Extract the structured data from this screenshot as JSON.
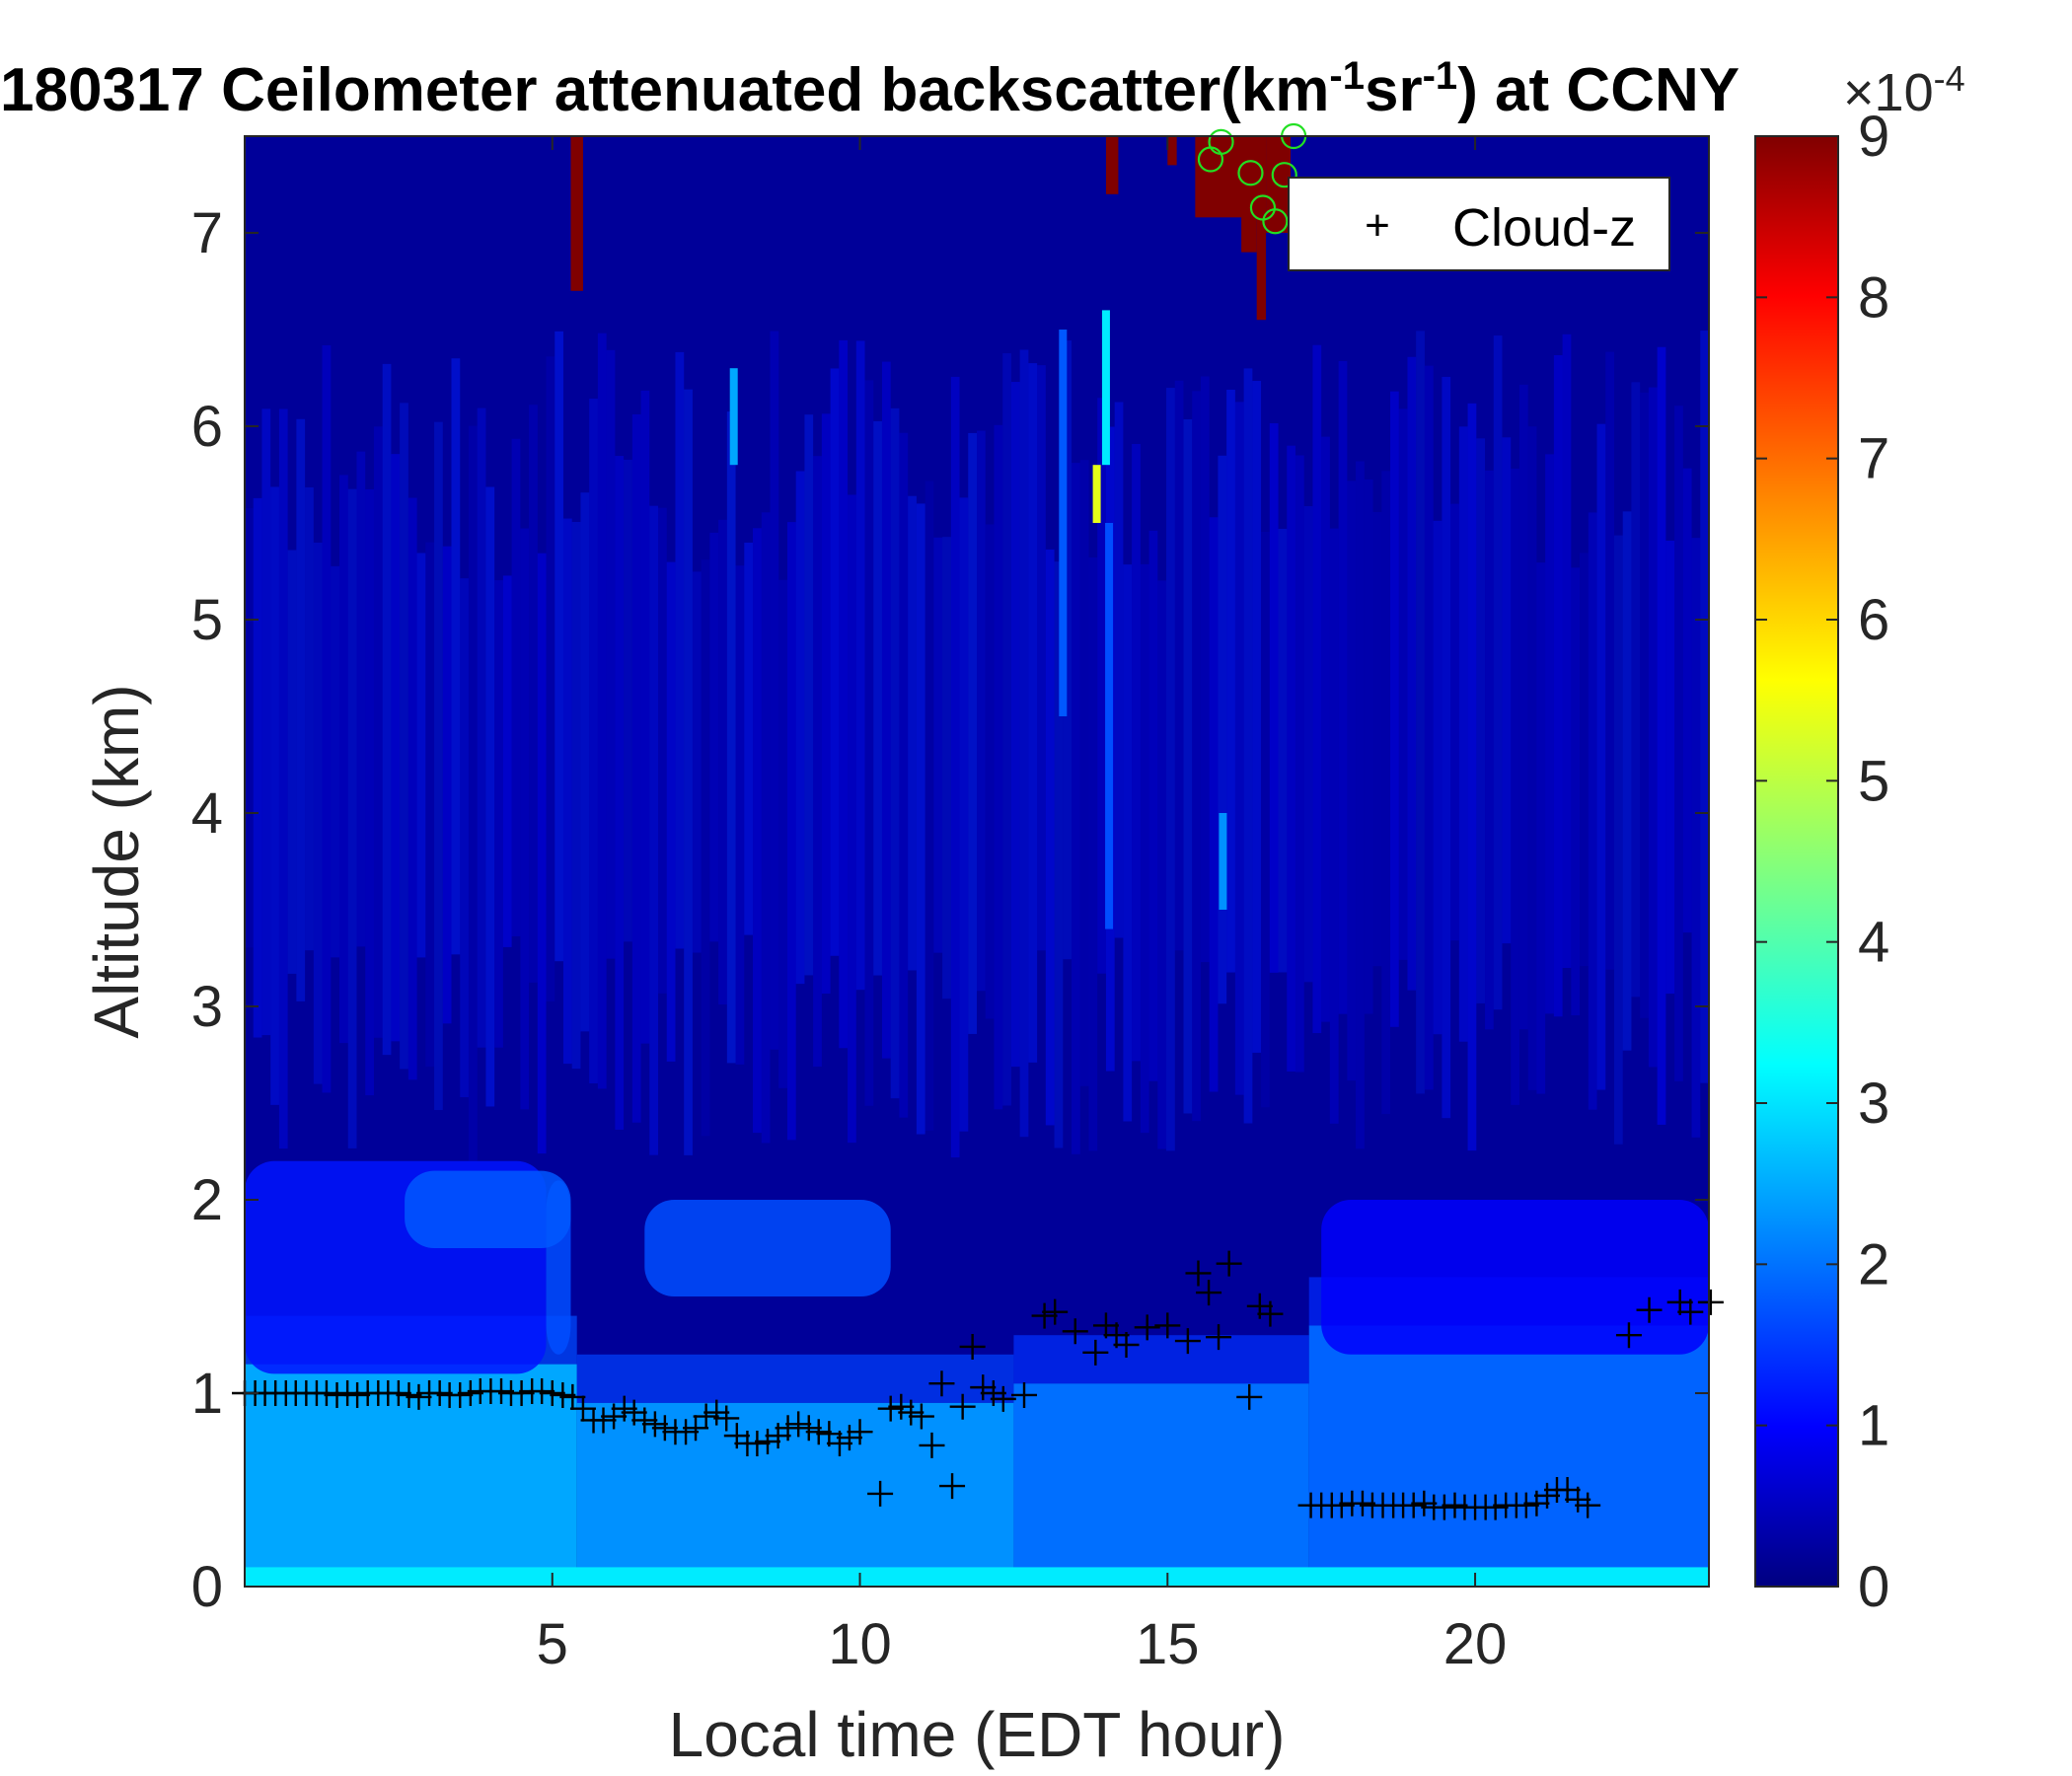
{
  "chart_data": {
    "type": "heatmap",
    "title": {
      "prefix": "180317 Ceilometer attenuated backscatter(km",
      "sup1": "-1",
      "mid": "sr",
      "sup2": "-1",
      "suffix": ") at CCNY"
    },
    "xlabel": "Local time (EDT hour)",
    "ylabel": "Altitude (km)",
    "xlim": [
      0,
      23.8
    ],
    "ylim": [
      0,
      7.5
    ],
    "xticks": [
      5,
      10,
      15,
      20
    ],
    "yticks": [
      0,
      1,
      2,
      3,
      4,
      5,
      6,
      7
    ],
    "colorbar": {
      "colormap": "jet",
      "min": 0,
      "max": 9,
      "ticks": [
        0,
        1,
        2,
        3,
        4,
        5,
        6,
        7,
        8,
        9
      ],
      "exponent_label": "×10",
      "exponent_power": "-4"
    },
    "legend": {
      "position": "top-right",
      "entries": [
        {
          "marker": "+",
          "label": "Cloud-z"
        }
      ]
    },
    "series": [
      {
        "name": "Cloud-z",
        "marker": "+",
        "color": "#000000",
        "points": [
          [
            0.0,
            1.0
          ],
          [
            0.17,
            1.0
          ],
          [
            0.33,
            1.0
          ],
          [
            0.5,
            1.0
          ],
          [
            0.67,
            1.0
          ],
          [
            0.83,
            1.0
          ],
          [
            1.0,
            1.0
          ],
          [
            1.17,
            1.0
          ],
          [
            1.33,
            1.0
          ],
          [
            1.5,
            0.99
          ],
          [
            1.67,
            1.0
          ],
          [
            1.83,
            0.99
          ],
          [
            2.0,
            1.0
          ],
          [
            2.17,
            1.0
          ],
          [
            2.33,
            1.0
          ],
          [
            2.5,
            1.0
          ],
          [
            2.67,
            0.99
          ],
          [
            2.83,
            0.98
          ],
          [
            3.0,
            1.0
          ],
          [
            3.17,
            1.0
          ],
          [
            3.33,
            0.99
          ],
          [
            3.5,
            0.99
          ],
          [
            3.67,
            1.0
          ],
          [
            3.83,
            1.01
          ],
          [
            4.0,
            1.01
          ],
          [
            4.17,
            1.01
          ],
          [
            4.33,
            1.0
          ],
          [
            4.5,
            1.0
          ],
          [
            4.67,
            1.01
          ],
          [
            4.83,
            1.01
          ],
          [
            5.0,
            1.0
          ],
          [
            5.17,
            0.99
          ],
          [
            5.33,
            0.98
          ],
          [
            5.5,
            0.92
          ],
          [
            5.67,
            0.86
          ],
          [
            5.83,
            0.86
          ],
          [
            6.0,
            0.88
          ],
          [
            6.17,
            0.92
          ],
          [
            6.33,
            0.9
          ],
          [
            6.5,
            0.86
          ],
          [
            6.67,
            0.84
          ],
          [
            6.83,
            0.82
          ],
          [
            7.0,
            0.8
          ],
          [
            7.17,
            0.8
          ],
          [
            7.33,
            0.82
          ],
          [
            7.5,
            0.88
          ],
          [
            7.67,
            0.9
          ],
          [
            7.83,
            0.87
          ],
          [
            8.0,
            0.78
          ],
          [
            8.17,
            0.74
          ],
          [
            8.33,
            0.74
          ],
          [
            8.5,
            0.75
          ],
          [
            8.67,
            0.78
          ],
          [
            8.83,
            0.82
          ],
          [
            9.0,
            0.84
          ],
          [
            9.17,
            0.82
          ],
          [
            9.33,
            0.8
          ],
          [
            9.5,
            0.79
          ],
          [
            9.67,
            0.74
          ],
          [
            9.83,
            0.77
          ],
          [
            10.0,
            0.8
          ],
          [
            10.33,
            0.48
          ],
          [
            10.5,
            0.92
          ],
          [
            10.67,
            0.93
          ],
          [
            10.83,
            0.9
          ],
          [
            11.0,
            0.88
          ],
          [
            11.17,
            0.73
          ],
          [
            11.33,
            1.05
          ],
          [
            11.5,
            0.52
          ],
          [
            11.67,
            0.93
          ],
          [
            11.83,
            1.24
          ],
          [
            12.0,
            1.03
          ],
          [
            12.17,
            1.0
          ],
          [
            12.33,
            0.97
          ],
          [
            12.67,
            0.99
          ],
          [
            13.0,
            1.4
          ],
          [
            13.17,
            1.42
          ],
          [
            13.5,
            1.32
          ],
          [
            13.83,
            1.21
          ],
          [
            14.0,
            1.35
          ],
          [
            14.17,
            1.3
          ],
          [
            14.33,
            1.25
          ],
          [
            14.67,
            1.34
          ],
          [
            15.0,
            1.35
          ],
          [
            15.33,
            1.27
          ],
          [
            15.5,
            1.62
          ],
          [
            15.67,
            1.52
          ],
          [
            15.83,
            1.29
          ],
          [
            16.0,
            1.67
          ],
          [
            16.33,
            0.98
          ],
          [
            16.5,
            1.45
          ],
          [
            16.67,
            1.41
          ],
          [
            17.33,
            0.42
          ],
          [
            17.5,
            0.42
          ],
          [
            17.67,
            0.42
          ],
          [
            17.83,
            0.42
          ],
          [
            18.0,
            0.43
          ],
          [
            18.17,
            0.43
          ],
          [
            18.33,
            0.42
          ],
          [
            18.5,
            0.42
          ],
          [
            18.67,
            0.42
          ],
          [
            18.83,
            0.42
          ],
          [
            19.0,
            0.42
          ],
          [
            19.17,
            0.43
          ],
          [
            19.33,
            0.41
          ],
          [
            19.5,
            0.41
          ],
          [
            19.67,
            0.42
          ],
          [
            19.83,
            0.41
          ],
          [
            20.0,
            0.41
          ],
          [
            20.17,
            0.41
          ],
          [
            20.33,
            0.41
          ],
          [
            20.5,
            0.42
          ],
          [
            20.67,
            0.42
          ],
          [
            20.83,
            0.42
          ],
          [
            21.0,
            0.43
          ],
          [
            21.17,
            0.47
          ],
          [
            21.33,
            0.5
          ],
          [
            21.5,
            0.5
          ],
          [
            21.67,
            0.45
          ],
          [
            21.83,
            0.42
          ],
          [
            22.5,
            1.3
          ],
          [
            22.83,
            1.43
          ],
          [
            23.33,
            1.47
          ],
          [
            23.5,
            1.42
          ],
          [
            23.83,
            1.47
          ]
        ]
      },
      {
        "marker": "o",
        "color": "#22e022",
        "points": [
          [
            15.7,
            7.38
          ],
          [
            15.87,
            7.47
          ],
          [
            16.35,
            7.31
          ],
          [
            16.55,
            7.13
          ],
          [
            16.75,
            7.06
          ],
          [
            16.9,
            7.3
          ],
          [
            17.05,
            7.5
          ]
        ]
      }
    ],
    "features": {
      "background_level": 0.4,
      "boundary_layer": [
        {
          "x0": 0,
          "x1": 5.4,
          "top": 1.15,
          "level": 2.6
        },
        {
          "x0": 5.4,
          "x1": 12.5,
          "top": 0.95,
          "level": 2.4
        },
        {
          "x0": 12.5,
          "x1": 17.3,
          "top": 1.05,
          "level": 2.1
        },
        {
          "x0": 17.3,
          "x1": 23.8,
          "top": 1.35,
          "level": 2.0
        }
      ],
      "aerosol_bands": [
        {
          "x0": 0,
          "x1": 4.9,
          "y0": 1.1,
          "y1": 2.2,
          "level": 1.3
        },
        {
          "x0": 4.9,
          "x1": 5.3,
          "y0": 1.2,
          "y1": 2.1,
          "level": 1.8
        },
        {
          "x0": 2.6,
          "x1": 5.3,
          "y0": 1.75,
          "y1": 2.15,
          "level": 1.9
        },
        {
          "x0": 6.5,
          "x1": 10.5,
          "y0": 1.5,
          "y1": 2.0,
          "level": 1.8
        },
        {
          "x0": 17.5,
          "x1": 23.8,
          "y0": 1.2,
          "y1": 2.0,
          "level": 1.1
        }
      ],
      "high_clouds": [
        {
          "x0": 5.3,
          "x1": 5.5,
          "y0": 6.7,
          "y1": 7.5,
          "level": 9
        },
        {
          "x0": 14.0,
          "x1": 14.2,
          "y0": 7.2,
          "y1": 7.5,
          "level": 9
        },
        {
          "x0": 15.0,
          "x1": 15.15,
          "y0": 7.35,
          "y1": 7.5,
          "level": 9
        },
        {
          "x0": 15.45,
          "x1": 16.6,
          "y0": 7.08,
          "y1": 7.5,
          "level": 9
        },
        {
          "x0": 16.2,
          "x1": 16.45,
          "y0": 6.9,
          "y1": 7.1,
          "level": 9
        },
        {
          "x0": 16.45,
          "x1": 16.6,
          "y0": 6.55,
          "y1": 7.1,
          "level": 9
        },
        {
          "x0": 16.6,
          "x1": 17.0,
          "y0": 7.0,
          "y1": 7.5,
          "level": 9
        }
      ],
      "streaks": [
        {
          "x": 14.0,
          "y0": 5.8,
          "y1": 6.6,
          "level": 3.2
        },
        {
          "x": 13.85,
          "y0": 5.5,
          "y1": 5.8,
          "level": 5.4
        },
        {
          "x": 7.95,
          "y0": 5.8,
          "y1": 6.3,
          "level": 2.6
        },
        {
          "x": 15.9,
          "y0": 3.5,
          "y1": 4.0,
          "level": 2.4
        },
        {
          "x": 13.3,
          "y0": 4.5,
          "y1": 6.5,
          "level": 1.9
        },
        {
          "x": 14.05,
          "y0": 3.4,
          "y1": 5.5,
          "level": 1.8
        }
      ]
    }
  }
}
